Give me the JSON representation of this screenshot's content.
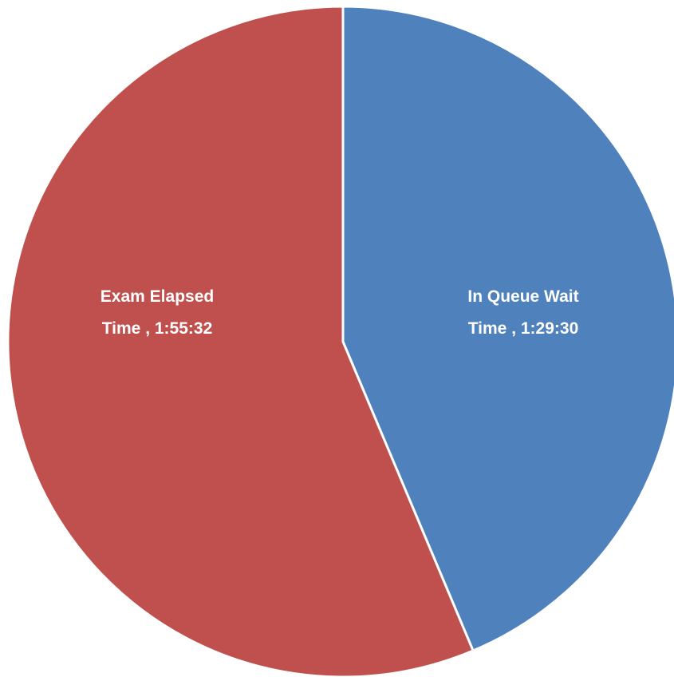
{
  "chart_data": {
    "type": "pie",
    "categories": [
      "In Queue Wait Time",
      "Exam Elapsed Time"
    ],
    "values": [
      5370,
      6932
    ],
    "value_labels": [
      "1:29:30",
      "1:55:32"
    ],
    "label_separator": " , ",
    "colors": [
      "#4f81bd",
      "#c0504d"
    ]
  }
}
